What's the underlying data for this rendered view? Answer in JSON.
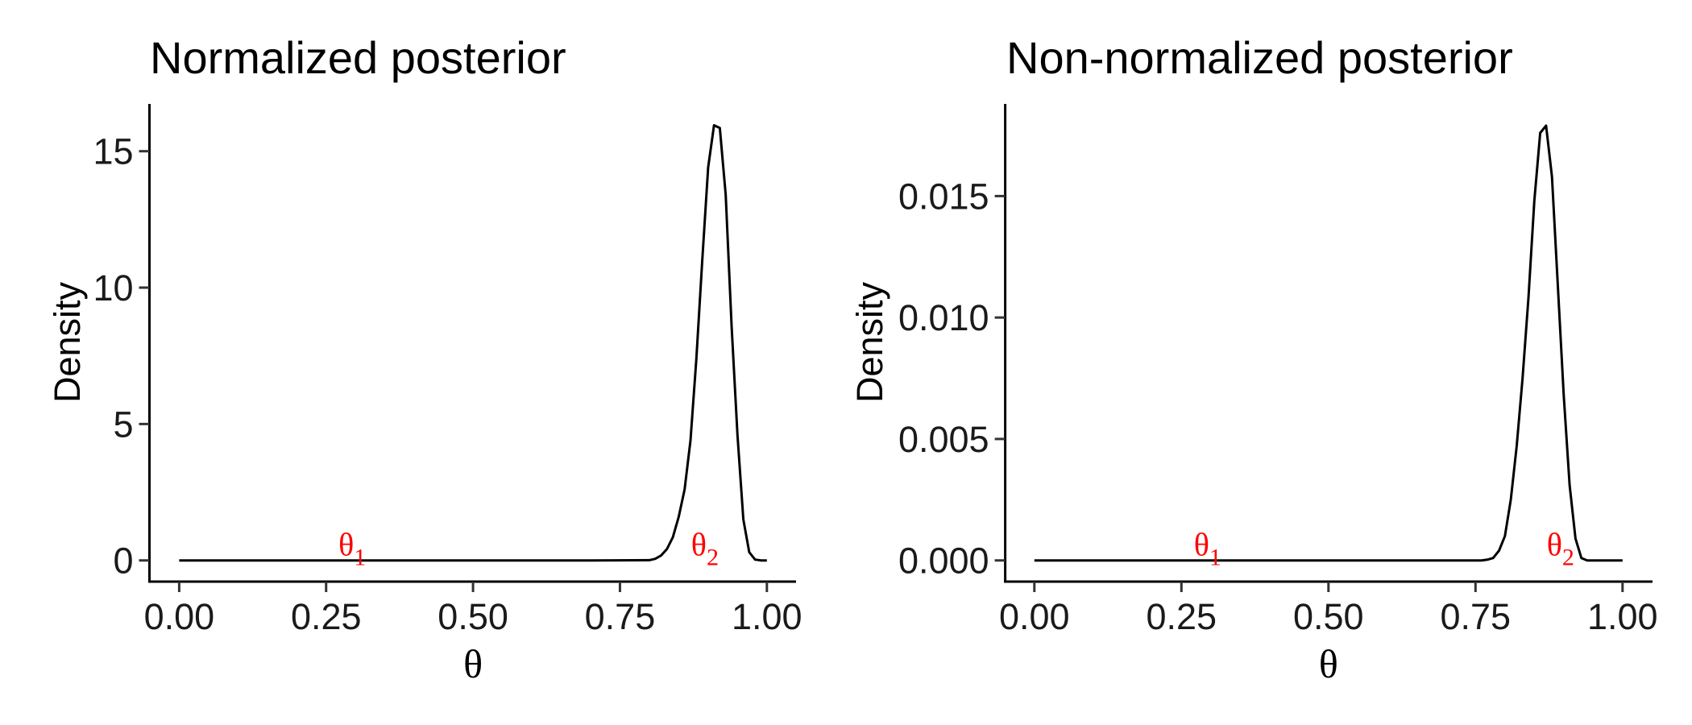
{
  "chart_data": [
    {
      "type": "line",
      "title": "Normalized posterior",
      "xlabel": "θ",
      "ylabel": "Density",
      "xlim": [
        0,
        1
      ],
      "ylim": [
        0,
        16
      ],
      "xticks": [
        0,
        0.25,
        0.5,
        0.75,
        1
      ],
      "xtick_labels": [
        "0.00",
        "0.25",
        "0.50",
        "0.75",
        "1.00"
      ],
      "yticks": [
        0,
        5,
        10,
        15
      ],
      "ytick_labels": [
        "0",
        "5",
        "10",
        "15"
      ],
      "grid": false,
      "color": "#000000",
      "x": [
        0,
        0.1,
        0.2,
        0.3,
        0.4,
        0.5,
        0.6,
        0.7,
        0.8,
        0.81,
        0.82,
        0.83,
        0.84,
        0.85,
        0.86,
        0.87,
        0.88,
        0.89,
        0.9,
        0.91,
        0.92,
        0.93,
        0.94,
        0.95,
        0.96,
        0.97,
        0.98,
        0.99,
        1.0
      ],
      "y": [
        0,
        0,
        0,
        0,
        0,
        0,
        0,
        0,
        0.01,
        0.06,
        0.18,
        0.42,
        0.85,
        1.6,
        2.6,
        4.4,
        7.4,
        11.0,
        14.4,
        15.95,
        15.85,
        13.4,
        8.6,
        4.6,
        1.5,
        0.3,
        0.03,
        0,
        0
      ],
      "annotations": [
        {
          "text": "θ",
          "sub": "1",
          "x": 0.3,
          "y": 0,
          "color": "#ff0000"
        },
        {
          "text": "θ",
          "sub": "2",
          "x": 0.9,
          "y": 0,
          "color": "#ff0000"
        }
      ]
    },
    {
      "type": "line",
      "title": "Non-normalized posterior",
      "xlabel": "θ",
      "ylabel": "Density",
      "xlim": [
        0,
        1
      ],
      "ylim": [
        0,
        0.018
      ],
      "xticks": [
        0,
        0.25,
        0.5,
        0.75,
        1
      ],
      "xtick_labels": [
        "0.00",
        "0.25",
        "0.50",
        "0.75",
        "1.00"
      ],
      "yticks": [
        0,
        0.005,
        0.01,
        0.015
      ],
      "ytick_labels": [
        "0.000",
        "0.005",
        "0.010",
        "0.015"
      ],
      "grid": false,
      "color": "#000000",
      "x": [
        0,
        0.1,
        0.2,
        0.3,
        0.4,
        0.5,
        0.6,
        0.7,
        0.76,
        0.77,
        0.78,
        0.79,
        0.8,
        0.81,
        0.82,
        0.83,
        0.84,
        0.85,
        0.86,
        0.87,
        0.88,
        0.89,
        0.9,
        0.91,
        0.92,
        0.93,
        0.94,
        0.95,
        1.0
      ],
      "y": [
        0,
        0,
        0,
        0,
        0,
        0,
        0,
        0,
        0,
        3e-05,
        0.0001,
        0.0004,
        0.001,
        0.0025,
        0.0047,
        0.0075,
        0.0108,
        0.0148,
        0.0176,
        0.0179,
        0.0158,
        0.0113,
        0.0068,
        0.0031,
        0.0009,
        0.0001,
        0,
        0,
        0
      ],
      "annotations": [
        {
          "text": "θ",
          "sub": "1",
          "x": 0.3,
          "y": 0,
          "color": "#ff0000"
        },
        {
          "text": "θ",
          "sub": "2",
          "x": 0.9,
          "y": 0,
          "color": "#ff0000"
        }
      ]
    }
  ]
}
